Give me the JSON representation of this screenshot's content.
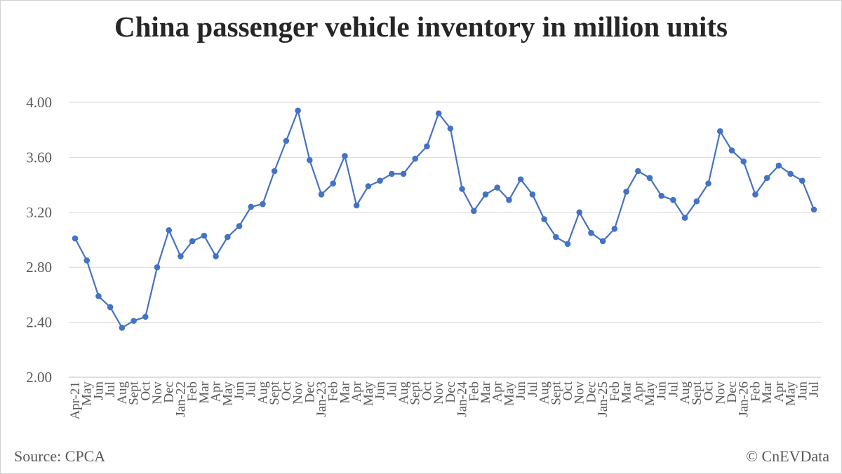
{
  "chart_data": {
    "type": "line",
    "title": "China passenger vehicle inventory in million units",
    "xlabel": "",
    "ylabel": "",
    "ylim": [
      2.0,
      4.0
    ],
    "yticks": [
      "2.00",
      "2.40",
      "2.80",
      "3.20",
      "3.60",
      "4.00"
    ],
    "grid": true,
    "line_color": "#4472c4",
    "categories": [
      "Apr-21",
      "May",
      "Jun",
      "Jul",
      "Aug",
      "Sept",
      "Oct",
      "Nov",
      "Dec",
      "Jan-22",
      "Feb",
      "Mar",
      "Apr",
      "May",
      "Jun",
      "Jul",
      "Aug",
      "Sept",
      "Oct",
      "Nov",
      "Dec",
      "Jan-23",
      "Feb",
      "Mar",
      "Apr",
      "May",
      "Jun",
      "Jul",
      "Aug",
      "Sept",
      "Oct",
      "Nov",
      "Dec",
      "Jan-24",
      "Feb",
      "Mar",
      "Apr",
      "May",
      "Jun",
      "Jul",
      "Aug",
      "Sept",
      "Oct",
      "Nov",
      "Dec",
      "Jan-25",
      "Feb",
      "Mar",
      "Apr",
      "May",
      "Jun",
      "Jul",
      "Aug",
      "Sept",
      "Oct",
      "Nov",
      "Dec",
      "Jan-26",
      "Feb",
      "Mar",
      "Apr",
      "May",
      "Jun",
      "Jul"
    ],
    "series": [
      {
        "values": [
          3.01,
          2.85,
          2.59,
          2.51,
          2.36,
          2.41,
          2.44,
          2.8,
          3.07,
          2.88,
          2.99,
          3.03,
          2.88,
          3.02,
          3.1,
          3.24,
          3.26,
          3.5,
          3.72,
          3.94,
          3.58,
          3.33,
          3.41,
          3.61,
          3.25,
          3.39,
          3.43,
          3.48,
          3.48,
          3.59,
          3.68,
          3.92,
          3.81,
          3.37,
          3.21,
          3.33,
          3.38,
          3.29,
          3.44,
          3.33,
          3.15,
          3.02,
          2.97,
          3.2,
          3.05,
          2.99,
          3.08,
          3.35,
          3.5,
          3.45,
          3.32,
          3.29,
          3.16,
          3.28,
          3.41,
          3.79,
          3.65,
          3.57,
          3.33,
          3.45,
          3.54,
          3.48,
          3.43,
          3.22
        ]
      }
    ]
  },
  "footer": {
    "source": "Source: CPCA",
    "copyright": "© CnEVData"
  }
}
